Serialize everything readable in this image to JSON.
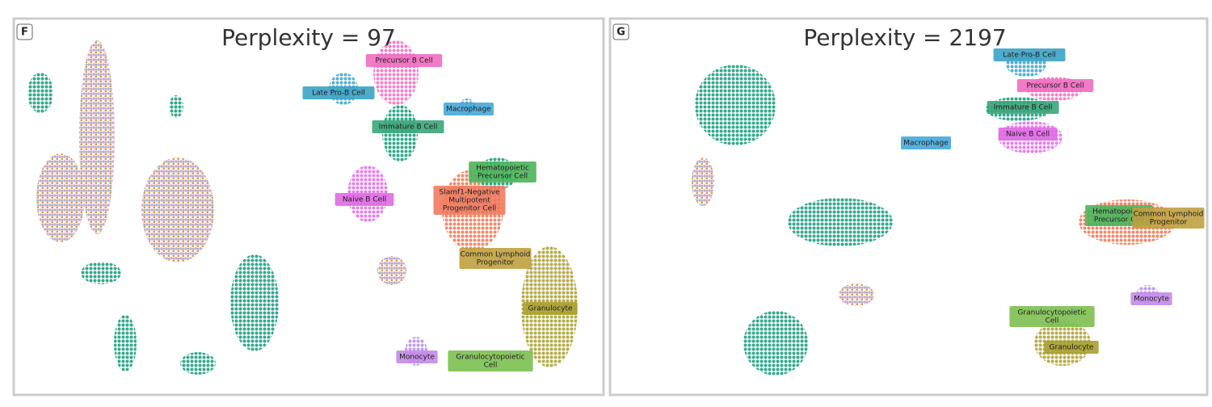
{
  "panels": [
    {
      "letter": "F",
      "title": "Perplexity = 97",
      "labels": [
        [
          "Precursor B Cell"
        ],
        [
          "Late Pro-B Cell"
        ],
        [
          "Macrophage"
        ],
        [
          "Immature B Cell"
        ],
        [
          "Hematopoietic",
          "Precursor Cell"
        ],
        [
          "Slamf1-Negative",
          "Multipotent",
          "Progenitor Cell"
        ],
        [
          "Naive B Cell"
        ],
        [
          "Common Lymphoid",
          "Progenitor"
        ],
        [
          "Granulocyte"
        ],
        [
          "Monocyte"
        ],
        [
          "Granulocytopoietic",
          "Cell"
        ]
      ]
    },
    {
      "letter": "G",
      "title": "Perplexity = 2197",
      "labels": [
        [
          "Late Pro-B Cell"
        ],
        [
          "Precursor B Cell"
        ],
        [
          "Immature B Cell"
        ],
        [
          "Naive B Cell"
        ],
        [
          "Macrophage"
        ],
        [
          "Hematopoietic",
          "Precursor Cell"
        ],
        [
          "Common Lymphoid",
          "Progenitor"
        ],
        [
          "Monocyte"
        ],
        [
          "Granulocytopoietic",
          "Cell"
        ],
        [
          "Granulocyte"
        ]
      ]
    }
  ]
}
